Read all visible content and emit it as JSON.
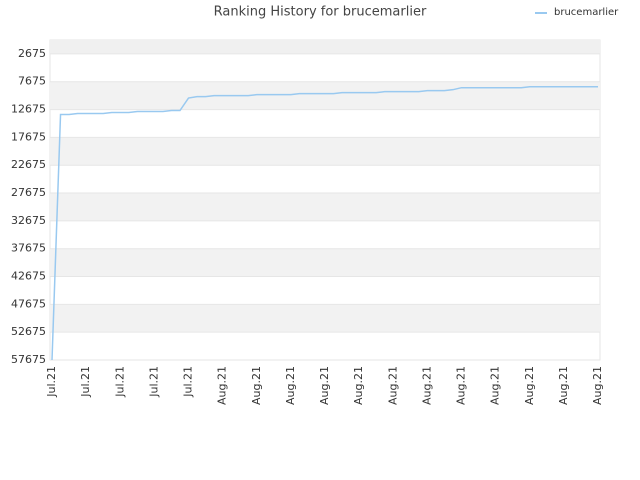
{
  "chart_data": {
    "type": "line",
    "title": "Ranking History for brucemarlier",
    "categories": [
      "Jul.21",
      null,
      null,
      null,
      "Jul.21",
      null,
      null,
      null,
      "Jul.21",
      null,
      null,
      null,
      "Jul.21",
      null,
      null,
      null,
      "Jul.21",
      null,
      null,
      null,
      "Aug.21",
      null,
      null,
      null,
      "Aug.21",
      null,
      null,
      null,
      "Aug.21",
      null,
      null,
      null,
      "Aug.21",
      null,
      null,
      null,
      "Aug.21",
      null,
      null,
      null,
      "Aug.21",
      null,
      null,
      null,
      "Aug.21",
      null,
      null,
      null,
      "Aug.21",
      null,
      null,
      null,
      "Aug.21",
      null,
      null,
      null,
      "Aug.21",
      null,
      null,
      null,
      "Aug.21",
      null,
      null,
      null,
      "Aug.21"
    ],
    "series": [
      {
        "name": "brucemarlier",
        "color": "#99c9f0",
        "values": [
          57675,
          13570,
          13570,
          13390,
          13390,
          13390,
          13390,
          13210,
          13210,
          13210,
          13030,
          13030,
          13030,
          13030,
          12850,
          12850,
          10600,
          10350,
          10350,
          10175,
          10175,
          10175,
          10175,
          10175,
          9995,
          9995,
          9995,
          9995,
          9995,
          9815,
          9815,
          9815,
          9815,
          9815,
          9640,
          9640,
          9640,
          9640,
          9640,
          9460,
          9460,
          9460,
          9460,
          9460,
          9280,
          9280,
          9280,
          9100,
          8745,
          8745,
          8745,
          8745,
          8745,
          8745,
          8745,
          8745,
          8570,
          8570,
          8570,
          8570,
          8570,
          8570,
          8570,
          8570,
          8570
        ]
      }
    ],
    "ylim": [
      57675,
      175
    ],
    "yticks": [
      2675,
      7675,
      12675,
      17675,
      22675,
      27675,
      32675,
      37675,
      42675,
      47675,
      52675,
      57675
    ],
    "grid": true,
    "legend": "top-right"
  }
}
